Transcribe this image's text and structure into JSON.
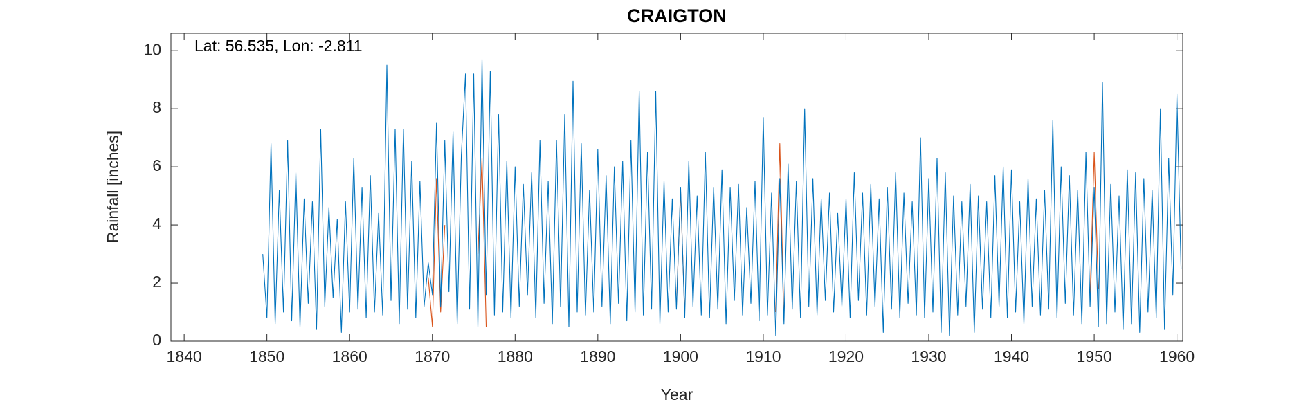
{
  "chart_data": {
    "type": "line",
    "title": "CRAIGTON",
    "annotation": "Lat: 56.535, Lon: -2.811",
    "x_label": "Year",
    "y_label": "Rainfall [inches]",
    "xlim": [
      1838.4,
      1960.7
    ],
    "xticks": [
      1840,
      1850,
      1860,
      1870,
      1880,
      1890,
      1900,
      1910,
      1920,
      1930,
      1940,
      1950,
      1960
    ],
    "ylim": [
      0,
      10.6
    ],
    "yticks": [
      0,
      2,
      4,
      6,
      8,
      10
    ],
    "grid": false,
    "series": [
      {
        "color": "#D95319",
        "x": [
          1869.5,
          1870,
          1870.5,
          1871,
          1871.5,
          1872,
          1875.5,
          1876,
          1876.5,
          1877,
          1899.5,
          1900,
          1900.5,
          1901,
          1911.5,
          1912,
          1912.5,
          1913,
          1949.5,
          1950,
          1950.5
        ],
        "values": [
          2.2,
          0.5,
          5.6,
          1.0,
          4.0,
          null,
          3.0,
          6.3,
          0.5,
          null,
          1.2,
          5.2,
          0.9,
          null,
          1.0,
          6.8,
          0.7,
          null,
          1.5,
          6.5,
          1.8
        ]
      },
      {
        "color": "#0072BD",
        "x": [
          1849.5,
          1850,
          1850.5,
          1851,
          1851.5,
          1852,
          1852.5,
          1853,
          1853.5,
          1854,
          1854.5,
          1855,
          1855.5,
          1856,
          1856.5,
          1857,
          1857.5,
          1858,
          1858.5,
          1859,
          1859.5,
          1860,
          1860.5,
          1861,
          1861.5,
          1862,
          1862.5,
          1863,
          1863.5,
          1864,
          1864.5,
          1865,
          1865.5,
          1866,
          1866.5,
          1867,
          1867.5,
          1868,
          1868.5,
          1869,
          1869.5,
          1870,
          1870.5,
          1871,
          1871.5,
          1872,
          1872.5,
          1873,
          1873.5,
          1874,
          1874.5,
          1875,
          1875.5,
          1876,
          1876.5,
          1877,
          1877.5,
          1878,
          1878.5,
          1879,
          1879.5,
          1880,
          1880.5,
          1881,
          1881.5,
          1882,
          1882.5,
          1883,
          1883.5,
          1884,
          1884.5,
          1885,
          1885.5,
          1886,
          1886.5,
          1887,
          1887.5,
          1888,
          1888.5,
          1889,
          1889.5,
          1890,
          1890.5,
          1891,
          1891.5,
          1892,
          1892.5,
          1893,
          1893.5,
          1894,
          1894.5,
          1895,
          1895.5,
          1896,
          1896.5,
          1897,
          1897.5,
          1898,
          1898.5,
          1899,
          1899.5,
          1900,
          1900.5,
          1901,
          1901.5,
          1902,
          1902.5,
          1903,
          1903.5,
          1904,
          1904.5,
          1905,
          1905.5,
          1906,
          1906.5,
          1907,
          1907.5,
          1908,
          1908.5,
          1909,
          1909.5,
          1910,
          1910.5,
          1911,
          1911.5,
          1912,
          1912.5,
          1913,
          1913.5,
          1914,
          1914.5,
          1915,
          1915.5,
          1916,
          1916.5,
          1917,
          1917.5,
          1918,
          1918.5,
          1919,
          1919.5,
          1920,
          1920.5,
          1921,
          1921.5,
          1922,
          1922.5,
          1923,
          1923.5,
          1924,
          1924.5,
          1925,
          1925.5,
          1926,
          1926.5,
          1927,
          1927.5,
          1928,
          1928.5,
          1929,
          1929.5,
          1930,
          1930.5,
          1931,
          1931.5,
          1932,
          1932.5,
          1933,
          1933.5,
          1934,
          1934.5,
          1935,
          1935.5,
          1936,
          1936.5,
          1937,
          1937.5,
          1938,
          1938.5,
          1939,
          1939.5,
          1940,
          1940.5,
          1941,
          1941.5,
          1942,
          1942.5,
          1943,
          1943.5,
          1944,
          1944.5,
          1945,
          1945.5,
          1946,
          1946.5,
          1947,
          1947.5,
          1948,
          1948.5,
          1949,
          1949.5,
          1950,
          1950.5,
          1951,
          1951.5,
          1952,
          1952.5,
          1953,
          1953.5,
          1954,
          1954.5,
          1955,
          1955.5,
          1956,
          1956.5,
          1957,
          1957.5,
          1958,
          1958.5,
          1959,
          1959.5,
          1960,
          1960.5
        ],
        "values": [
          3.0,
          0.8,
          6.8,
          0.6,
          5.2,
          1.0,
          6.9,
          0.7,
          5.8,
          0.5,
          4.9,
          1.3,
          4.8,
          0.4,
          7.3,
          1.2,
          4.6,
          1.5,
          4.2,
          0.3,
          4.8,
          1.0,
          6.3,
          1.1,
          5.3,
          0.8,
          5.7,
          1.0,
          4.4,
          0.9,
          9.5,
          1.4,
          7.3,
          0.6,
          7.3,
          1.1,
          6.2,
          0.8,
          5.5,
          1.2,
          2.7,
          1.6,
          7.5,
          1.2,
          6.9,
          1.7,
          7.2,
          0.6,
          6.4,
          9.2,
          1.1,
          9.2,
          0.5,
          9.7,
          1.6,
          9.3,
          0.9,
          7.8,
          1.0,
          6.2,
          0.8,
          6.0,
          1.2,
          5.4,
          1.6,
          5.8,
          0.8,
          6.9,
          1.3,
          5.5,
          0.6,
          6.9,
          1.2,
          7.8,
          0.5,
          8.95,
          1.0,
          6.8,
          0.9,
          5.2,
          1.0,
          6.6,
          1.2,
          5.7,
          0.6,
          6.0,
          1.3,
          6.2,
          0.7,
          6.9,
          1.0,
          8.6,
          0.9,
          6.5,
          1.1,
          8.6,
          0.6,
          5.5,
          1.0,
          4.9,
          1.1,
          5.3,
          0.8,
          6.2,
          1.2,
          5.0,
          0.9,
          6.5,
          0.8,
          5.3,
          1.1,
          5.9,
          0.6,
          5.3,
          1.4,
          5.4,
          0.9,
          4.6,
          1.3,
          5.5,
          0.7,
          7.7,
          0.9,
          5.1,
          0.2,
          5.6,
          0.6,
          6.1,
          1.1,
          5.5,
          0.8,
          8.0,
          1.2,
          5.6,
          0.9,
          4.9,
          1.4,
          5.1,
          1.0,
          4.4,
          1.2,
          4.9,
          0.8,
          5.8,
          1.4,
          5.1,
          0.9,
          5.4,
          1.2,
          4.9,
          0.3,
          5.3,
          1.1,
          5.8,
          0.8,
          5.1,
          1.3,
          4.8,
          0.9,
          7.0,
          0.8,
          5.6,
          1.0,
          6.3,
          0.3,
          5.8,
          0.2,
          5.0,
          0.9,
          4.8,
          1.2,
          5.4,
          0.3,
          5.0,
          1.1,
          4.8,
          0.8,
          5.7,
          1.2,
          6.0,
          0.8,
          5.9,
          1.0,
          4.8,
          0.6,
          5.6,
          1.2,
          4.9,
          0.9,
          5.2,
          1.1,
          7.6,
          0.8,
          6.0,
          1.3,
          5.7,
          0.9,
          5.2,
          0.6,
          6.5,
          1.2,
          5.3,
          0.5,
          8.9,
          0.6,
          5.4,
          1.0,
          5.0,
          0.4,
          5.9,
          0.6,
          5.8,
          0.3,
          5.6,
          1.0,
          5.2,
          0.8,
          8.0,
          0.4,
          6.3,
          1.6,
          8.5,
          2.5
        ]
      }
    ]
  }
}
